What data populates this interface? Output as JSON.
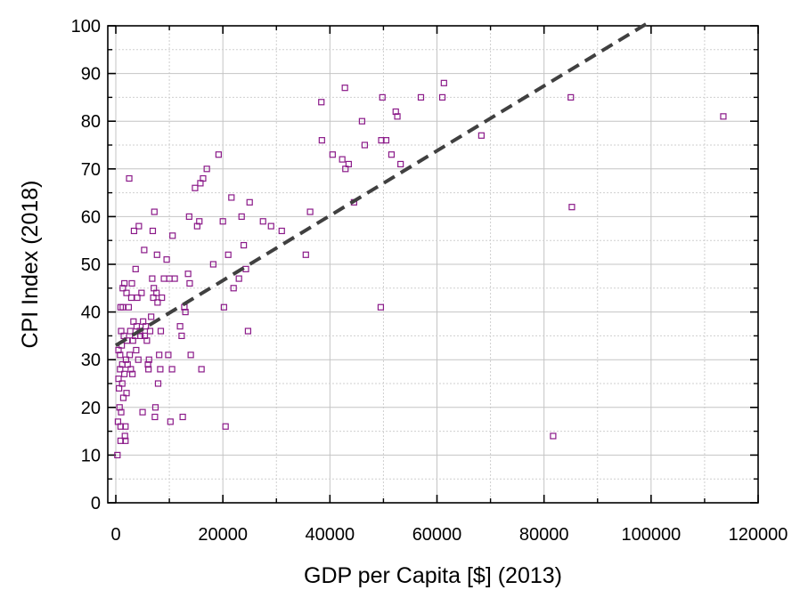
{
  "chart_data": {
    "type": "scatter",
    "xlabel": "GDP per Capita [$] (2013)",
    "ylabel": "CPI Index (2018)",
    "xlim": [
      -1500,
      120000
    ],
    "ylim": [
      0,
      100
    ],
    "x_ticks": [
      0,
      20000,
      40000,
      60000,
      80000,
      100000,
      120000
    ],
    "y_ticks": [
      0,
      10,
      20,
      30,
      40,
      50,
      60,
      70,
      80,
      90,
      100
    ],
    "grid": true,
    "marker_color": "#8B1A89",
    "trend_color": "#404040",
    "trendline": {
      "x": [
        0,
        100000
      ],
      "y": [
        33,
        101
      ]
    },
    "points": [
      [
        300,
        10
      ],
      [
        400,
        17
      ],
      [
        500,
        26
      ],
      [
        500,
        32
      ],
      [
        600,
        24
      ],
      [
        700,
        20
      ],
      [
        800,
        28
      ],
      [
        800,
        31
      ],
      [
        900,
        13
      ],
      [
        900,
        16
      ],
      [
        900,
        41
      ],
      [
        1000,
        36
      ],
      [
        1000,
        19
      ],
      [
        1100,
        33
      ],
      [
        1200,
        29
      ],
      [
        1200,
        25
      ],
      [
        1300,
        41
      ],
      [
        1300,
        45
      ],
      [
        1400,
        22
      ],
      [
        1500,
        35
      ],
      [
        1600,
        46
      ],
      [
        1600,
        27
      ],
      [
        1700,
        14
      ],
      [
        1800,
        13
      ],
      [
        1800,
        16
      ],
      [
        1900,
        30
      ],
      [
        2000,
        44
      ],
      [
        2000,
        23
      ],
      [
        2100,
        34
      ],
      [
        2200,
        29
      ],
      [
        2400,
        41
      ],
      [
        2500,
        68
      ],
      [
        2600,
        31
      ],
      [
        2700,
        36
      ],
      [
        2800,
        28
      ],
      [
        2900,
        43
      ],
      [
        3000,
        46
      ],
      [
        3100,
        27
      ],
      [
        3200,
        34
      ],
      [
        3300,
        38
      ],
      [
        3400,
        57
      ],
      [
        3600,
        35
      ],
      [
        3700,
        49
      ],
      [
        3800,
        32
      ],
      [
        3900,
        37
      ],
      [
        4000,
        43
      ],
      [
        4200,
        30
      ],
      [
        4300,
        58
      ],
      [
        4500,
        36
      ],
      [
        4600,
        35
      ],
      [
        4800,
        44
      ],
      [
        5000,
        19
      ],
      [
        5100,
        38
      ],
      [
        5300,
        53
      ],
      [
        5400,
        35
      ],
      [
        5600,
        37
      ],
      [
        5800,
        34
      ],
      [
        6000,
        29
      ],
      [
        6100,
        28
      ],
      [
        6200,
        30
      ],
      [
        6400,
        36
      ],
      [
        6600,
        39
      ],
      [
        6800,
        47
      ],
      [
        6900,
        57
      ],
      [
        7000,
        43
      ],
      [
        7100,
        45
      ],
      [
        7200,
        61
      ],
      [
        7300,
        18
      ],
      [
        7400,
        20
      ],
      [
        7600,
        44
      ],
      [
        7700,
        52
      ],
      [
        7800,
        42
      ],
      [
        7900,
        25
      ],
      [
        8100,
        31
      ],
      [
        8300,
        28
      ],
      [
        8400,
        36
      ],
      [
        8600,
        43
      ],
      [
        9000,
        47
      ],
      [
        9500,
        51
      ],
      [
        9800,
        31
      ],
      [
        10000,
        47
      ],
      [
        10200,
        17
      ],
      [
        10500,
        28
      ],
      [
        10600,
        56
      ],
      [
        11000,
        47
      ],
      [
        12000,
        37
      ],
      [
        12300,
        35
      ],
      [
        12500,
        18
      ],
      [
        12800,
        41
      ],
      [
        13000,
        40
      ],
      [
        13500,
        48
      ],
      [
        13700,
        60
      ],
      [
        13800,
        46
      ],
      [
        14000,
        31
      ],
      [
        14800,
        66
      ],
      [
        15200,
        58
      ],
      [
        15600,
        59
      ],
      [
        15800,
        67
      ],
      [
        16000,
        28
      ],
      [
        16300,
        68
      ],
      [
        17000,
        70
      ],
      [
        18200,
        50
      ],
      [
        19200,
        73
      ],
      [
        20000,
        59
      ],
      [
        20200,
        41
      ],
      [
        20500,
        16
      ],
      [
        21000,
        52
      ],
      [
        21600,
        64
      ],
      [
        22000,
        45
      ],
      [
        23000,
        47
      ],
      [
        23500,
        60
      ],
      [
        23900,
        54
      ],
      [
        24300,
        49
      ],
      [
        24700,
        36
      ],
      [
        25000,
        63
      ],
      [
        27500,
        59
      ],
      [
        29000,
        58
      ],
      [
        31000,
        57
      ],
      [
        35500,
        52
      ],
      [
        36300,
        61
      ],
      [
        38400,
        84
      ],
      [
        38500,
        76
      ],
      [
        40500,
        73
      ],
      [
        42300,
        72
      ],
      [
        42800,
        87
      ],
      [
        42900,
        70
      ],
      [
        43500,
        71
      ],
      [
        44500,
        63
      ],
      [
        46000,
        80
      ],
      [
        46500,
        75
      ],
      [
        49500,
        41
      ],
      [
        49600,
        76
      ],
      [
        49800,
        85
      ],
      [
        50500,
        76
      ],
      [
        51500,
        73
      ],
      [
        52300,
        82
      ],
      [
        52600,
        81
      ],
      [
        53200,
        71
      ],
      [
        57000,
        85
      ],
      [
        61000,
        85
      ],
      [
        61300,
        88
      ],
      [
        68300,
        77
      ],
      [
        81700,
        14
      ],
      [
        85000,
        85
      ],
      [
        85200,
        62
      ],
      [
        113500,
        81
      ]
    ]
  }
}
